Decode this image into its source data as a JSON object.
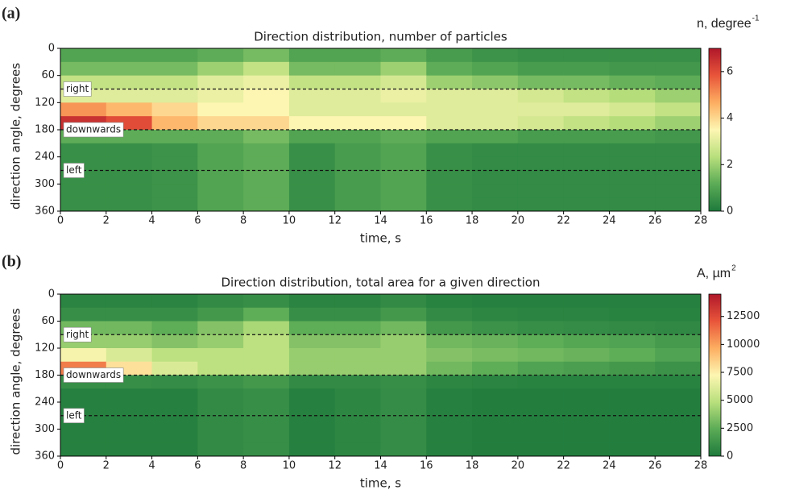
{
  "chart_data": [
    {
      "type": "heatmap",
      "panel_label": "(a)",
      "title": "Direction distribution, number of particles",
      "xlabel": "time, s",
      "ylabel": "direction angle, degrees",
      "colorbar_label": "n, degree",
      "colorbar_label_sup": "-1",
      "xlim": [
        0,
        28
      ],
      "xticks": [
        0,
        2,
        4,
        6,
        8,
        10,
        12,
        14,
        16,
        18,
        20,
        22,
        24,
        26,
        28
      ],
      "ylim": [
        0,
        360
      ],
      "yticks": [
        0,
        60,
        120,
        180,
        240,
        300,
        360
      ],
      "y_inverted": true,
      "x_edges": [
        0,
        2,
        4,
        6,
        8,
        10,
        12,
        14,
        16,
        18,
        20,
        22,
        24,
        26,
        28
      ],
      "y_edges": [
        0,
        30,
        60,
        90,
        120,
        150,
        180,
        210,
        240,
        270,
        300,
        330,
        360
      ],
      "z": [
        [
          1,
          1,
          1,
          1.2,
          1.5,
          1,
          1,
          1.2,
          0.8,
          0.6,
          0.5,
          0.5,
          0.5,
          0.5
        ],
        [
          1.5,
          1.5,
          1.5,
          2,
          2.5,
          1.5,
          1.5,
          2,
          1.2,
          1,
          0.8,
          0.8,
          0.7,
          0.7
        ],
        [
          2.5,
          2.5,
          2.5,
          3,
          3.2,
          2.5,
          2.5,
          2.8,
          2,
          1.8,
          1.5,
          1.5,
          1.3,
          1.2
        ],
        [
          3,
          3,
          3,
          3.2,
          3.5,
          3,
          3,
          3.2,
          3,
          3,
          2.8,
          2.5,
          2.3,
          2
        ],
        [
          5,
          4.5,
          4,
          3.5,
          3.5,
          3,
          3,
          3,
          3,
          3,
          3,
          3,
          2.8,
          2.5
        ],
        [
          6.5,
          6,
          4.5,
          4,
          4,
          3.5,
          3.5,
          3.5,
          3,
          3,
          2.8,
          2.5,
          2.3,
          2
        ],
        [
          1.2,
          1.2,
          1.2,
          1.2,
          1.5,
          1,
          1,
          1.2,
          1,
          1,
          0.8,
          0.8,
          0.8,
          0.7
        ],
        [
          0.5,
          0.5,
          0.6,
          1,
          1.2,
          0.5,
          0.8,
          1,
          0.5,
          0.4,
          0.4,
          0.4,
          0.4,
          0.4
        ],
        [
          0.5,
          0.5,
          0.6,
          1,
          1.2,
          0.5,
          0.8,
          1,
          0.5,
          0.4,
          0.4,
          0.4,
          0.4,
          0.4
        ],
        [
          0.5,
          0.5,
          0.6,
          1,
          1.2,
          0.5,
          0.8,
          1,
          0.5,
          0.4,
          0.4,
          0.4,
          0.4,
          0.4
        ],
        [
          0.5,
          0.5,
          0.6,
          1,
          1.2,
          0.5,
          0.8,
          1,
          0.5,
          0.4,
          0.4,
          0.4,
          0.4,
          0.4
        ],
        [
          0.5,
          0.5,
          0.6,
          1,
          1.2,
          0.5,
          0.8,
          1,
          0.5,
          0.4,
          0.4,
          0.4,
          0.4,
          0.4
        ]
      ],
      "zlim": [
        0,
        7
      ],
      "zticks": [
        0,
        2,
        4,
        6
      ],
      "colormap": [
        "#1e7a3c",
        "#5bab56",
        "#b8df7c",
        "#fdf6b2",
        "#fdae61",
        "#e8553a",
        "#b0172a"
      ],
      "annotations": [
        {
          "label": "right",
          "y": 90
        },
        {
          "label": "downwards",
          "y": 180
        },
        {
          "label": "left",
          "y": 270
        }
      ]
    },
    {
      "type": "heatmap",
      "panel_label": "(b)",
      "title": "Direction distribution, total area for a given direction",
      "xlabel": "time, s",
      "ylabel": "direction angle, degrees",
      "colorbar_label": "A, µm",
      "colorbar_label_sup": "2",
      "xlim": [
        0,
        28
      ],
      "xticks": [
        0,
        2,
        4,
        6,
        8,
        10,
        12,
        14,
        16,
        18,
        20,
        22,
        24,
        26,
        28
      ],
      "ylim": [
        0,
        360
      ],
      "yticks": [
        0,
        60,
        120,
        180,
        240,
        300,
        360
      ],
      "y_inverted": true,
      "x_edges": [
        0,
        2,
        4,
        6,
        8,
        10,
        12,
        14,
        16,
        18,
        20,
        22,
        24,
        26,
        28
      ],
      "y_edges": [
        0,
        30,
        60,
        90,
        120,
        150,
        180,
        210,
        240,
        270,
        300,
        330,
        360
      ],
      "z": [
        [
          500,
          500,
          500,
          800,
          1000,
          500,
          500,
          800,
          400,
          300,
          300,
          300,
          300,
          300
        ],
        [
          1000,
          1000,
          1000,
          1500,
          2500,
          1000,
          1000,
          1500,
          800,
          600,
          500,
          500,
          400,
          400
        ],
        [
          3000,
          3000,
          2500,
          3500,
          4500,
          2500,
          2500,
          3000,
          1500,
          1200,
          1000,
          900,
          800,
          700
        ],
        [
          4000,
          4000,
          3500,
          4000,
          5000,
          3500,
          3500,
          4000,
          3000,
          2800,
          2500,
          2200,
          2000,
          1600
        ],
        [
          7000,
          6000,
          5000,
          5000,
          5000,
          4000,
          4000,
          4000,
          3500,
          3200,
          3000,
          2800,
          2500,
          2000
        ],
        [
          11000,
          8000,
          6000,
          5000,
          5000,
          4000,
          4000,
          4000,
          3000,
          2500,
          2000,
          1800,
          1500,
          1200
        ],
        [
          1000,
          1000,
          900,
          1200,
          1500,
          800,
          800,
          1000,
          600,
          500,
          400,
          400,
          400,
          400
        ],
        [
          300,
          300,
          300,
          800,
          1000,
          300,
          600,
          900,
          300,
          200,
          200,
          200,
          200,
          200
        ],
        [
          300,
          300,
          300,
          800,
          1000,
          300,
          600,
          900,
          300,
          200,
          200,
          200,
          200,
          200
        ],
        [
          300,
          300,
          300,
          800,
          1000,
          300,
          600,
          900,
          300,
          200,
          200,
          200,
          200,
          200
        ],
        [
          300,
          300,
          300,
          800,
          1000,
          300,
          600,
          900,
          300,
          200,
          200,
          200,
          200,
          200
        ],
        [
          300,
          300,
          300,
          800,
          1000,
          300,
          600,
          900,
          300,
          200,
          200,
          200,
          200,
          200
        ]
      ],
      "zlim": [
        0,
        14500
      ],
      "zticks": [
        0,
        2500,
        5000,
        7500,
        10000,
        12500
      ],
      "colormap": [
        "#1e7a3c",
        "#5bab56",
        "#b8df7c",
        "#fdf6b2",
        "#fdae61",
        "#e8553a",
        "#b0172a"
      ],
      "annotations": [
        {
          "label": "right",
          "y": 90
        },
        {
          "label": "downwards",
          "y": 180
        },
        {
          "label": "left",
          "y": 270
        }
      ]
    }
  ]
}
